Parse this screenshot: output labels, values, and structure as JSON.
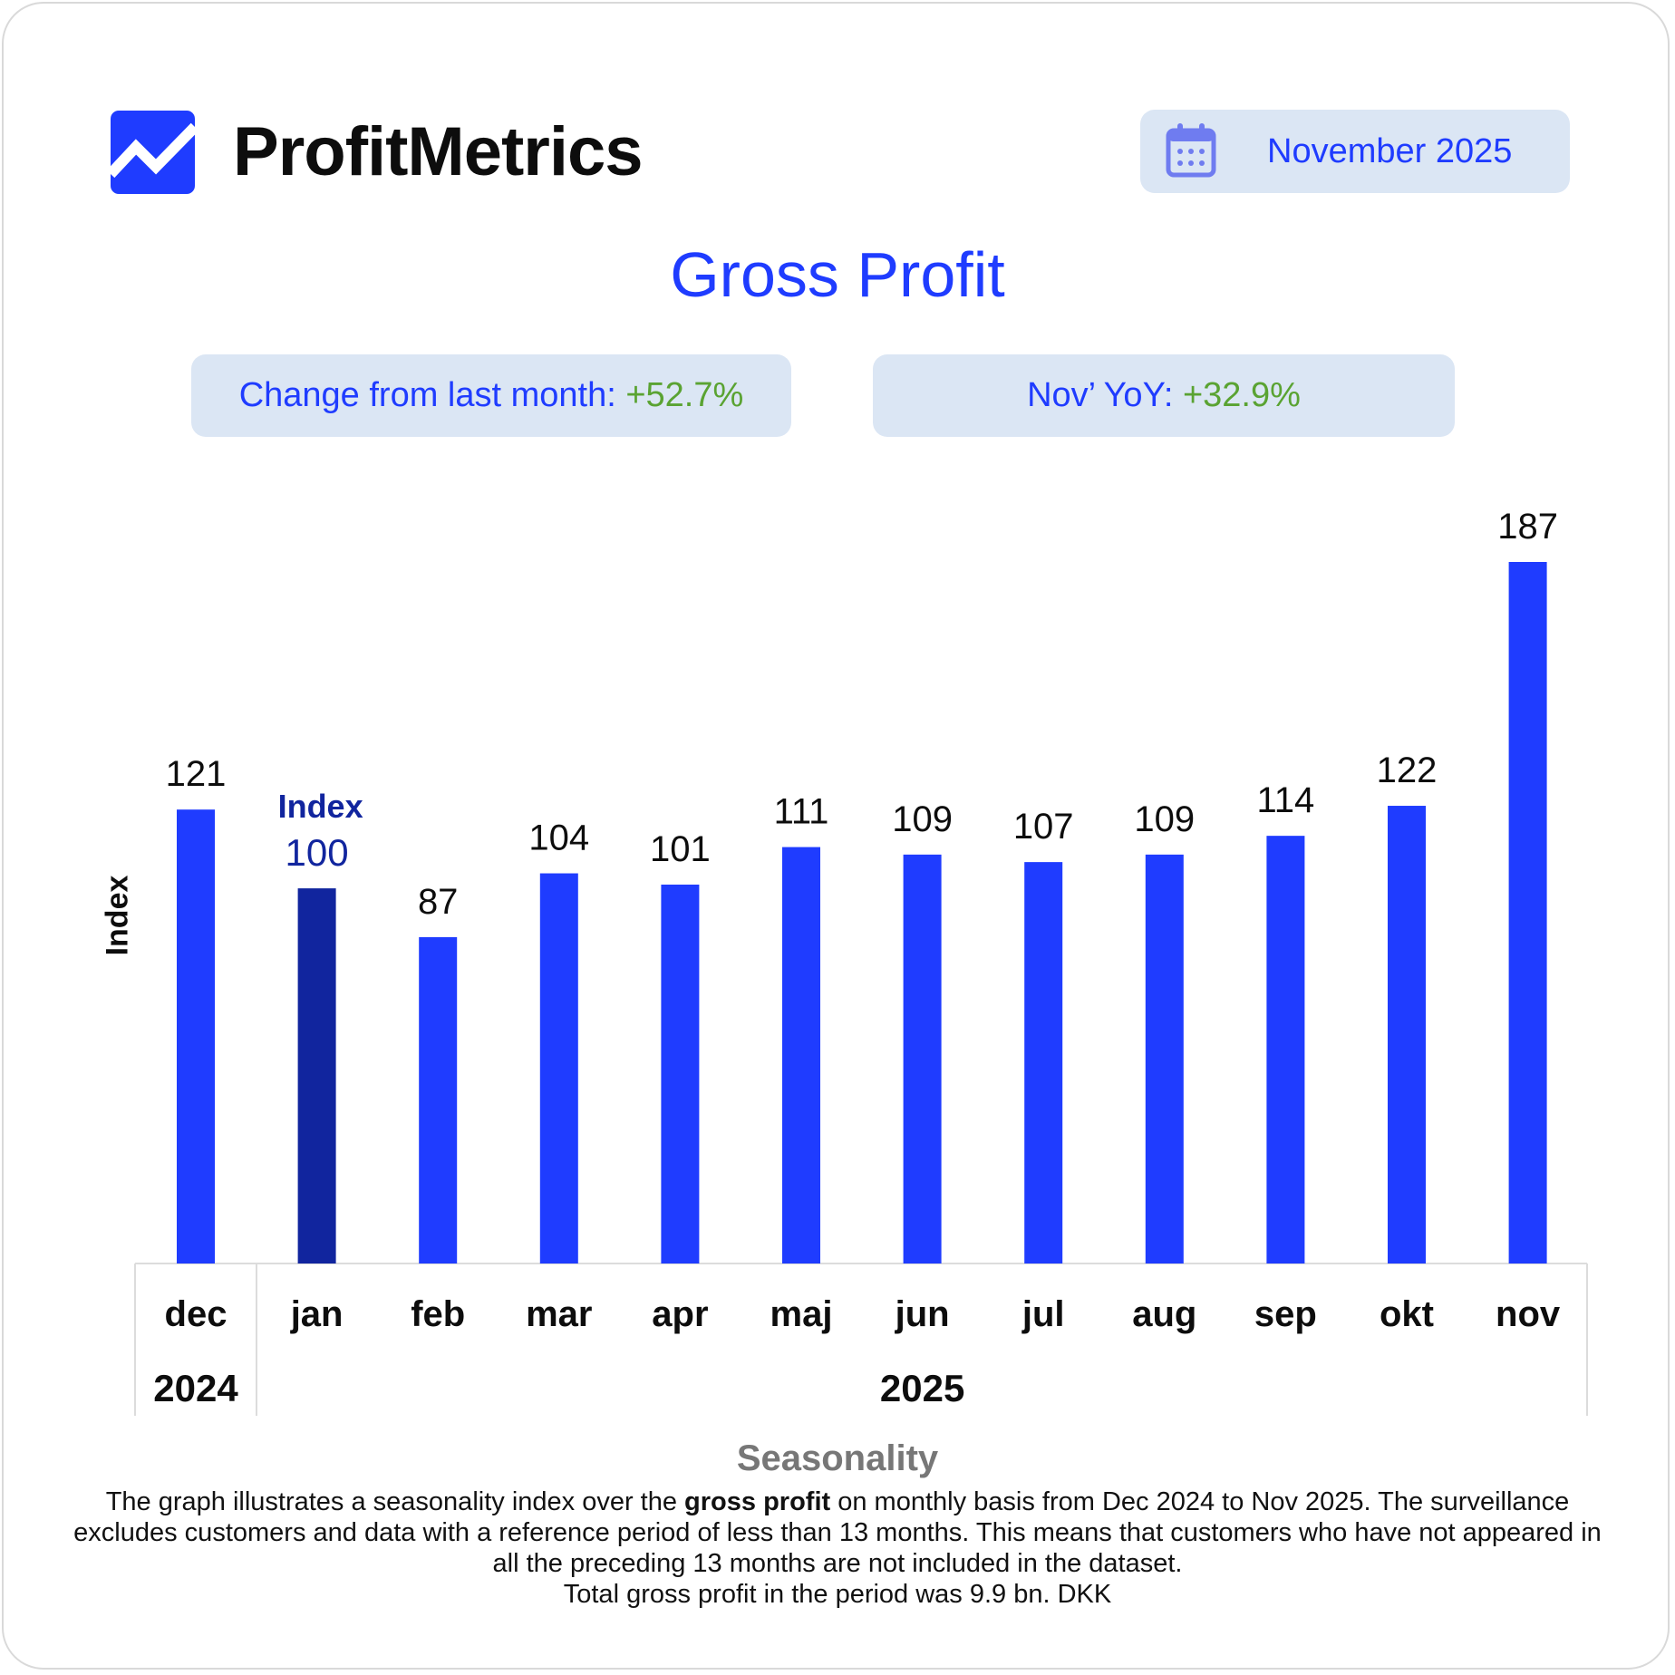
{
  "header": {
    "brand": "ProfitMetrics",
    "logo_icon": "trend-chart-icon",
    "calendar_icon": "calendar-icon",
    "date": "November 2025"
  },
  "title": "Gross Profit",
  "stats": {
    "mom_label": "Change from last month: ",
    "mom_value": "+52.7%",
    "yoy_label": "Nov’ YoY: ",
    "yoy_value": "+32.9%"
  },
  "colors": {
    "accent": "#1f3cff",
    "bar": "#1f3cff",
    "highlight_bar": "#11259e",
    "positive": "#5aa332",
    "pill_bg": "#dbe6f4"
  },
  "chart_data": {
    "type": "bar",
    "ylabel": "Index",
    "categories": [
      "dec",
      "jan",
      "feb",
      "mar",
      "apr",
      "maj",
      "jun",
      "jul",
      "aug",
      "sep",
      "okt",
      "nov"
    ],
    "values": [
      121,
      100,
      87,
      104,
      101,
      111,
      109,
      107,
      109,
      114,
      122,
      187
    ],
    "highlight_category": "jan",
    "highlight_label": "Index",
    "year_groups": [
      {
        "label": "2024",
        "categories": [
          "dec"
        ]
      },
      {
        "label": "2025",
        "categories": [
          "jan",
          "feb",
          "mar",
          "apr",
          "maj",
          "jun",
          "jul",
          "aug",
          "sep",
          "okt",
          "nov"
        ]
      }
    ],
    "ylim": [
      0,
      187
    ],
    "grid": false,
    "legend": "none"
  },
  "footer": {
    "section_title": "Seasonality",
    "desc_pre": "The graph illustrates a seasonality index over the ",
    "desc_bold": "gross profit",
    "desc_post": " on monthly basis from Dec 2024 to Nov 2025. The surveillance excludes customers and data with a reference period of less than 13 months. This means that customers who have not appeared in all the preceding 13 months are not included in the dataset.",
    "total_line": "Total gross profit in the period was 9.9 bn. DKK"
  }
}
